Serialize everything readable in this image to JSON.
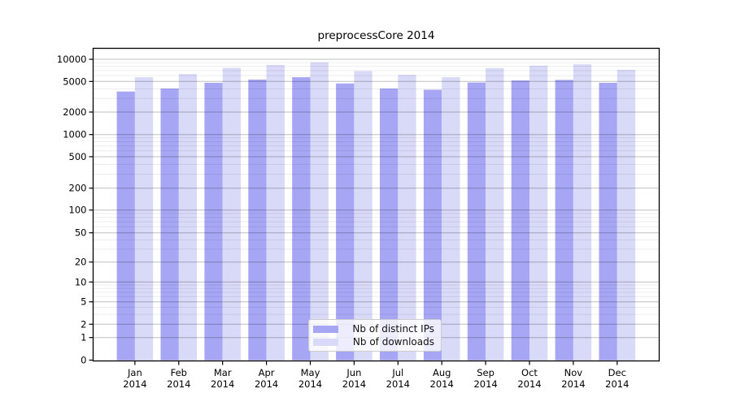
{
  "chart_data": {
    "type": "bar",
    "title": "preprocessCore 2014",
    "categories": [
      "Jan",
      "Feb",
      "Mar",
      "Apr",
      "May",
      "Jun",
      "Jul",
      "Aug",
      "Sep",
      "Oct",
      "Nov",
      "Dec"
    ],
    "category_year": "2014",
    "yscale": "symlog",
    "grid": true,
    "legend_position": "bottom-center",
    "y_ticks": [
      0,
      1,
      2,
      5,
      10,
      20,
      50,
      100,
      200,
      500,
      1000,
      2000,
      5000,
      10000
    ],
    "ylim": [
      0,
      10000
    ],
    "series": [
      {
        "name": "Nb of distinct IPs",
        "color": "#a6a6f4",
        "values": [
          3700,
          4050,
          4800,
          5300,
          5700,
          4700,
          4050,
          3900,
          4850,
          5150,
          5250,
          4800
        ]
      },
      {
        "name": "Nb of downloads",
        "color": "#d9d9f8",
        "values": [
          5700,
          6300,
          7650,
          8400,
          9100,
          6900,
          6150,
          5700,
          7600,
          8200,
          8550,
          7200
        ]
      }
    ]
  }
}
